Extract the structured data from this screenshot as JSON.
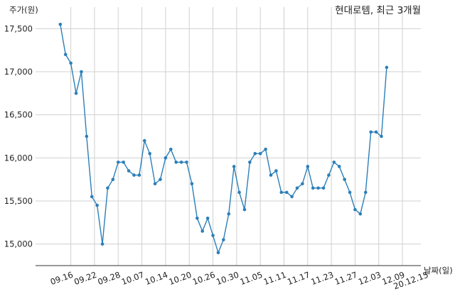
{
  "chart_data": {
    "type": "line",
    "title": "현대로템, 최근 3개월",
    "ylabel": "주가(원)",
    "xlabel": "날짜(일)",
    "ylim": [
      14750,
      17750
    ],
    "yticks": [
      15000,
      15500,
      16000,
      16500,
      17000,
      17500
    ],
    "ytick_labels": [
      "15,000",
      "15,500",
      "16,000",
      "16,500",
      "17,000",
      "17,500"
    ],
    "xlim": [
      -4.7,
      68.5
    ],
    "xtick_labels": [
      "09.16",
      "09.22",
      "09.28",
      "10.07",
      "10.14",
      "10.20",
      "10.26",
      "10.30",
      "11.05",
      "11.11",
      "11.17",
      "11.23",
      "11.27",
      "12.03",
      "12.09",
      "20.12.15"
    ],
    "xtick_positions": [
      2,
      6.5,
      11,
      15.5,
      20,
      24.5,
      29,
      33.5,
      38,
      42.5,
      47,
      51.5,
      56,
      60.5,
      65,
      69.5
    ],
    "grid": true,
    "color": "#2c7fb8",
    "series": [
      {
        "values": [
          17550,
          17200,
          17100,
          16750,
          17000,
          16250,
          15550,
          15450,
          15000,
          15650,
          15750,
          15950,
          15950,
          15850,
          15800,
          15800,
          16200,
          16050,
          15700,
          15750,
          16000,
          16100,
          15950,
          15950,
          15950,
          15700,
          15300,
          15150,
          15300,
          15100,
          14900,
          15050,
          15350,
          15900,
          15600,
          15400,
          15950,
          16050,
          16050,
          16100,
          15800,
          15850,
          15600,
          15600,
          15550,
          15650,
          15700,
          15900,
          15650,
          15650,
          15650,
          15800,
          15950,
          15900,
          15750,
          15600,
          15400,
          15350,
          15600,
          16300,
          16300,
          16250,
          17050
        ]
      }
    ]
  }
}
